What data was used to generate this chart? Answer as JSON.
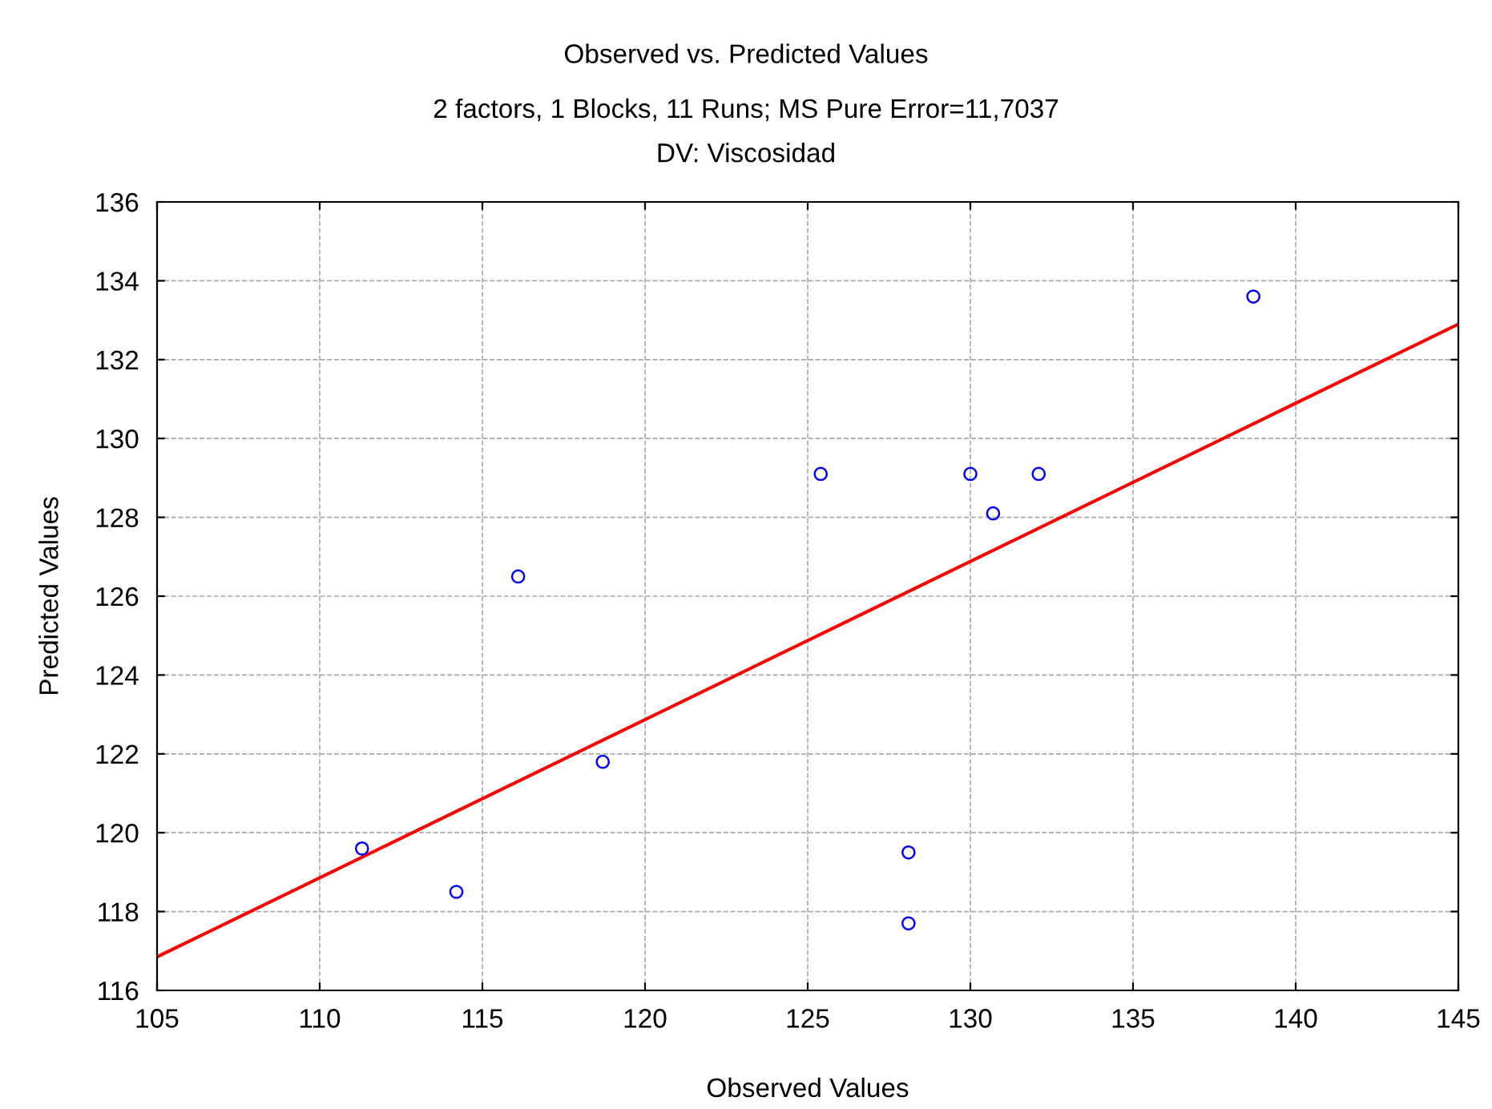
{
  "chart_data": {
    "type": "scatter",
    "title": "Observed vs. Predicted Values",
    "subtitle": "2 factors, 1 Blocks, 11 Runs; MS Pure Error=11,7037\nDV: Viscosidad",
    "xlabel": "Observed Values",
    "ylabel": "Predicted Values",
    "series": [
      {
        "color": "#0000ff",
        "marker": "circle",
        "x": [
          111.3,
          114.2,
          116.1,
          118.7,
          125.4,
          128.1,
          128.1,
          130.0,
          130.7,
          132.1,
          138.7
        ],
        "values": [
          119.6,
          118.5,
          126.5,
          121.8,
          129.1,
          119.5,
          117.7,
          129.1,
          128.1,
          129.1,
          133.6
        ]
      },
      {
        "type": "line",
        "color": "#ff0000",
        "marker": "none",
        "x": [
          105,
          145
        ],
        "values": [
          116.85,
          132.9
        ]
      }
    ],
    "xlim": [
      105,
      145
    ],
    "xticks": [
      105,
      110,
      115,
      120,
      125,
      130,
      135,
      140,
      145
    ],
    "ylim": [
      116,
      136
    ],
    "yticks": [
      116,
      118,
      120,
      122,
      124,
      126,
      128,
      130,
      132,
      134,
      136
    ],
    "grid": true,
    "legend": false
  }
}
